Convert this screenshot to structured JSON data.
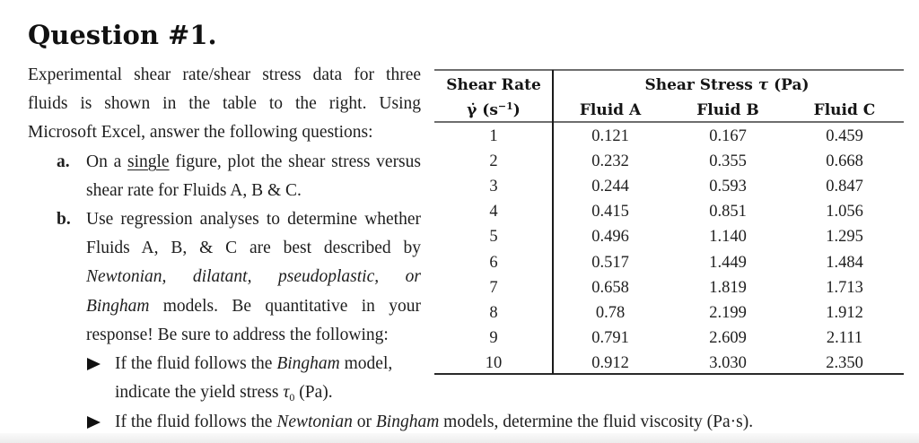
{
  "heading": "Question #1.",
  "intro": "Experimental shear rate/shear stress data for three fluids is shown in the table to the right. Using Microsoft Excel, answer the following questions:",
  "items": [
    {
      "label": "a.",
      "pre": "On a ",
      "underlined": "single",
      "post": " figure, plot the shear stress versus shear rate for Fluids A, B & C."
    },
    {
      "label": "b.",
      "pre": "Use regression analyses to determine whether Fluids A, B, & C are best described by ",
      "italic_models": "Newtonian, dilatant, pseudoplastic, or Bingham",
      "post": " models. Be quantitative in your response! Be sure to address the following:"
    }
  ],
  "bullets": [
    {
      "icon": "triangle-right-icon",
      "pre": "If the fluid follows the ",
      "italic": "Bingham",
      "mid": " model, indicate the yield stress ",
      "symbol": "τ",
      "subscript": "0",
      "post": " (Pa)."
    },
    {
      "icon": "triangle-right-icon",
      "pre": "If the fluid follows the ",
      "italic1": "Newtonian",
      "mid": " or ",
      "italic2": "Bingham",
      "post": " models, determine the fluid viscosity (Pa·s)."
    }
  ],
  "table": {
    "header": {
      "shear_rate_label": "Shear Rate",
      "shear_rate_symbol": "γ̇",
      "shear_rate_unit_open": "(s",
      "shear_rate_unit_exp": "−1",
      "shear_rate_unit_close": ")",
      "stress_label": "Shear Stress",
      "stress_symbol": "τ",
      "stress_unit": "(Pa)",
      "fluids": [
        "Fluid A",
        "Fluid B",
        "Fluid C"
      ]
    },
    "rows": [
      {
        "rate": "1",
        "a": "0.121",
        "b": "0.167",
        "c": "0.459"
      },
      {
        "rate": "2",
        "a": "0.232",
        "b": "0.355",
        "c": "0.668"
      },
      {
        "rate": "3",
        "a": "0.244",
        "b": "0.593",
        "c": "0.847"
      },
      {
        "rate": "4",
        "a": "0.415",
        "b": "0.851",
        "c": "1.056"
      },
      {
        "rate": "5",
        "a": "0.496",
        "b": "1.140",
        "c": "1.295"
      },
      {
        "rate": "6",
        "a": "0.517",
        "b": "1.449",
        "c": "1.484"
      },
      {
        "rate": "7",
        "a": "0.658",
        "b": "1.819",
        "c": "1.713"
      },
      {
        "rate": "8",
        "a": "0.78",
        "b": "2.199",
        "c": "1.912"
      },
      {
        "rate": "9",
        "a": "0.791",
        "b": "2.609",
        "c": "2.111"
      },
      {
        "rate": "10",
        "a": "0.912",
        "b": "3.030",
        "c": "2.350"
      }
    ]
  }
}
